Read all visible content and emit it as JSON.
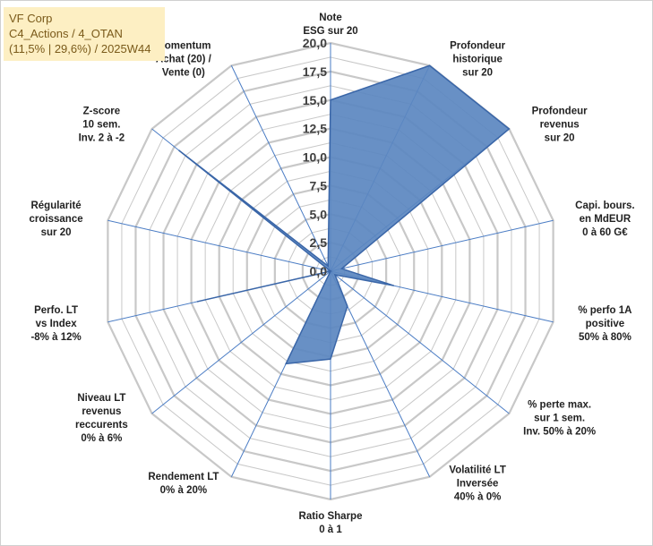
{
  "header": {
    "line1": "VF Corp",
    "line2": "C4_Actions / 4_OTAN",
    "line3": "(11,5% | 29,6%) / 2025W44"
  },
  "colors": {
    "fill": "#5b87c0",
    "stroke": "#3a66a8",
    "grid": "#c8c8c8",
    "axis": "#4a7cc4"
  },
  "chart_data": {
    "type": "radar",
    "ylim": [
      0,
      20
    ],
    "ticks": [
      "0,0",
      "2,5",
      "5,0",
      "7,5",
      "10,0",
      "12,5",
      "15,0",
      "17,5",
      "20,0"
    ],
    "tick_values": [
      0,
      2.5,
      5,
      7.5,
      10,
      12.5,
      15,
      17.5,
      20
    ],
    "categories": [
      {
        "lines": [
          "Note",
          "ESG sur 20"
        ]
      },
      {
        "lines": [
          "Profondeur",
          "historique",
          "sur 20"
        ]
      },
      {
        "lines": [
          "Profondeur",
          "revenus",
          "sur 20"
        ]
      },
      {
        "lines": [
          "Capi. bours.",
          "en MdEUR",
          "0 à 60 G€"
        ]
      },
      {
        "lines": [
          "% perfo 1A",
          "positive",
          "50% à 80%"
        ]
      },
      {
        "lines": [
          "% perte max.",
          "sur 1 sem.",
          "Inv. 50% à 20%"
        ]
      },
      {
        "lines": [
          "Volatilité LT",
          "Inversée",
          "40% à 0%"
        ]
      },
      {
        "lines": [
          "Ratio Sharpe",
          "0 à 1"
        ]
      },
      {
        "lines": [
          "Rendement LT",
          "0% à 20%"
        ]
      },
      {
        "lines": [
          "Niveau LT",
          "revenus",
          "reccurents",
          "0% à 6%"
        ]
      },
      {
        "lines": [
          "Perfo. LT",
          "vs Index",
          "-8% à 12%"
        ]
      },
      {
        "lines": [
          "Régularité",
          "croissance",
          "sur 20"
        ]
      },
      {
        "lines": [
          "Z-score",
          "10 sem.",
          "Inv. 2 à -2"
        ]
      },
      {
        "lines": [
          "Momentum",
          "Achat (20) /",
          "Vente (0)"
        ]
      }
    ],
    "series": [
      {
        "name": "VF Corp",
        "values": [
          15.0,
          20.0,
          20.0,
          1.0,
          5.7,
          0.5,
          3.4,
          7.7,
          9.0,
          0.0,
          12.0,
          0.0,
          17.0,
          0.5
        ]
      }
    ]
  }
}
